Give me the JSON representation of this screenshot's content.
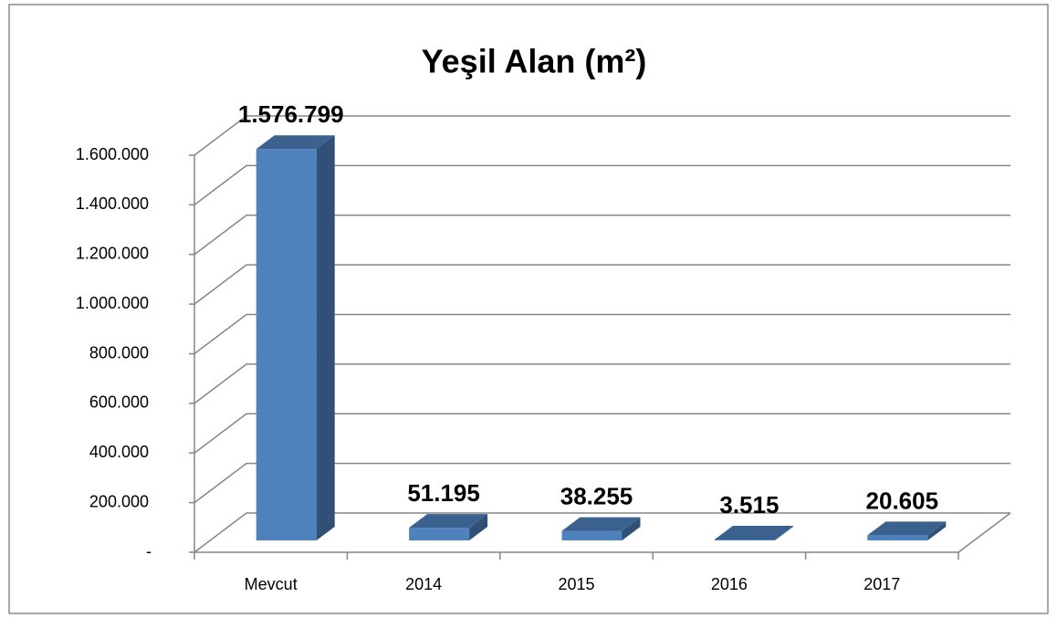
{
  "chart_data": {
    "type": "bar3d",
    "title": "Yeşil Alan (m²)",
    "categories": [
      "Mevcut",
      "2014",
      "2015",
      "2016",
      "2017"
    ],
    "values": [
      1576799,
      51195,
      38255,
      3515,
      20605
    ],
    "value_labels": [
      "1.576.799",
      "51.195",
      "38.255",
      "3.515",
      "20.605"
    ],
    "color": "#4f81bd",
    "ylim": [
      0,
      1600000
    ],
    "yticks": [
      {
        "value": 0,
        "label": "-"
      },
      {
        "value": 200000,
        "label": "200.000"
      },
      {
        "value": 400000,
        "label": "400.000"
      },
      {
        "value": 600000,
        "label": "600.000"
      },
      {
        "value": 800000,
        "label": "800.000"
      },
      {
        "value": 1000000,
        "label": "1.000.000"
      },
      {
        "value": 1200000,
        "label": "1.200.000"
      },
      {
        "value": 1400000,
        "label": "1.400.000"
      },
      {
        "value": 1600000,
        "label": "1.600.000"
      }
    ],
    "grid": true
  }
}
